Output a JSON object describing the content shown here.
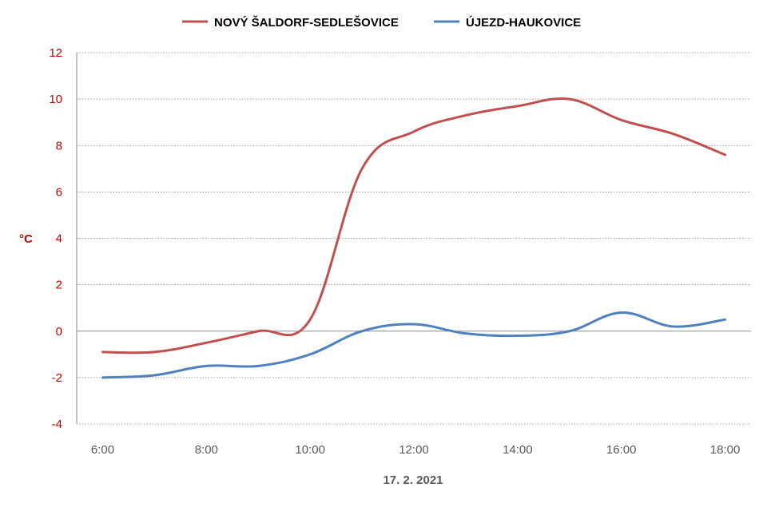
{
  "chart_data": {
    "type": "line",
    "title": "",
    "ylabel": "°C",
    "xlabel": "17. 2. 2021",
    "ylim": [
      -4,
      12
    ],
    "yticks": [
      -4,
      -2,
      0,
      2,
      4,
      6,
      8,
      10,
      12
    ],
    "xticks": [
      "6:00",
      "8:00",
      "10:00",
      "12:00",
      "14:00",
      "16:00",
      "18:00"
    ],
    "xlim_hours": [
      5.5,
      18.5
    ],
    "grid": true,
    "legend": "top-center",
    "series": [
      {
        "name": "NOVÝ ŠALDORF-SEDLEŠOVICE",
        "color": "#c0504d",
        "x": [
          "6:00",
          "7:00",
          "8:00",
          "9:00",
          "10:00",
          "11:00",
          "12:00",
          "13:00",
          "14:00",
          "15:00",
          "16:00",
          "17:00",
          "18:00"
        ],
        "values": [
          -0.9,
          -0.9,
          -0.5,
          0.0,
          0.5,
          7.0,
          8.6,
          9.3,
          9.7,
          10.0,
          9.1,
          8.5,
          7.6
        ]
      },
      {
        "name": "ÚJEZD-HAUKOVICE",
        "color": "#4f81bd",
        "x": [
          "6:00",
          "7:00",
          "8:00",
          "9:00",
          "10:00",
          "11:00",
          "12:00",
          "13:00",
          "14:00",
          "15:00",
          "16:00",
          "17:00",
          "18:00"
        ],
        "values": [
          -2.0,
          -1.9,
          -1.5,
          -1.5,
          -1.0,
          0.0,
          0.3,
          -0.1,
          -0.2,
          0.0,
          0.8,
          0.2,
          0.5
        ]
      }
    ]
  }
}
